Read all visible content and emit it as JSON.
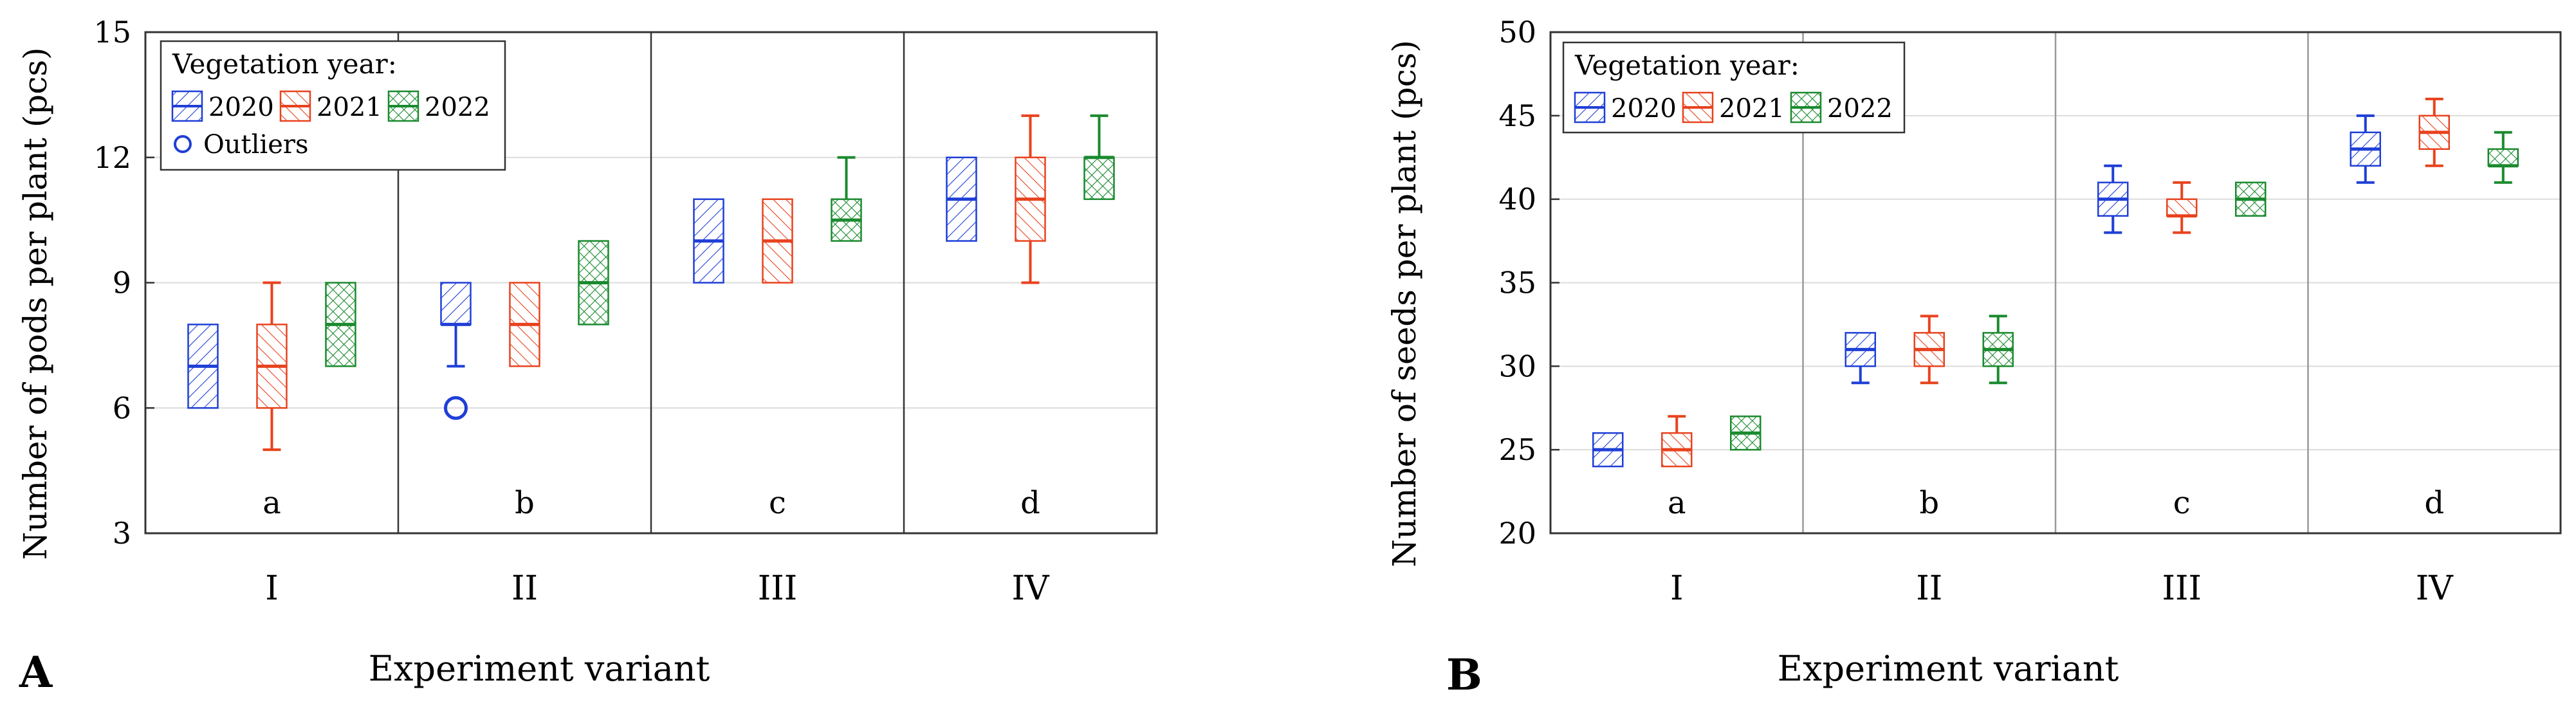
{
  "chart_data": [
    {
      "type": "box",
      "panel_label": "A",
      "xlabel": "Experiment variant",
      "ylabel": "Number of pods per plant (pcs)",
      "ylim": [
        3,
        15
      ],
      "yticks": [
        3,
        6,
        9,
        12,
        15
      ],
      "categories": [
        "I",
        "II",
        "III",
        "IV"
      ],
      "group_letters": [
        "a",
        "b",
        "c",
        "d"
      ],
      "legend": {
        "title": "Vegetation year:",
        "entries": [
          "2020",
          "2021",
          "2022"
        ],
        "outliers_label": "Outliers",
        "placement": "top-left"
      },
      "series": [
        {
          "name": "2020",
          "color": "#1f3fd6",
          "boxes": [
            {
              "min": 6,
              "q1": 6,
              "median": 7,
              "q3": 8,
              "max": 8
            },
            {
              "min": 7,
              "q1": 8,
              "median": 8,
              "q3": 9,
              "max": 9
            },
            {
              "min": 9,
              "q1": 9,
              "median": 10,
              "q3": 11,
              "max": 11
            },
            {
              "min": 10,
              "q1": 10,
              "median": 11,
              "q3": 12,
              "max": 12
            }
          ]
        },
        {
          "name": "2021",
          "color": "#e8421e",
          "boxes": [
            {
              "min": 5,
              "q1": 6,
              "median": 7,
              "q3": 8,
              "max": 9
            },
            {
              "min": 7,
              "q1": 7,
              "median": 8,
              "q3": 9,
              "max": 9
            },
            {
              "min": 9,
              "q1": 9,
              "median": 10,
              "q3": 11,
              "max": 11
            },
            {
              "min": 9,
              "q1": 10,
              "median": 11,
              "q3": 12,
              "max": 13
            }
          ]
        },
        {
          "name": "2022",
          "color": "#1a8a2e",
          "boxes": [
            {
              "min": 7,
              "q1": 7,
              "median": 8,
              "q3": 9,
              "max": 9
            },
            {
              "min": 8,
              "q1": 8,
              "median": 9,
              "q3": 10,
              "max": 10
            },
            {
              "min": 10,
              "q1": 10,
              "median": 10.5,
              "q3": 11,
              "max": 12
            },
            {
              "min": 11,
              "q1": 11,
              "median": 12,
              "q3": 12,
              "max": 13
            }
          ]
        }
      ],
      "outliers": [
        {
          "series": "2020",
          "category": "II",
          "value": 6
        }
      ]
    },
    {
      "type": "box",
      "panel_label": "B",
      "xlabel": "Experiment variant",
      "ylabel": "Number of seeds per plant (pcs)",
      "ylim": [
        20,
        50
      ],
      "yticks": [
        20,
        25,
        30,
        35,
        40,
        45,
        50
      ],
      "categories": [
        "I",
        "II",
        "III",
        "IV"
      ],
      "group_letters": [
        "a",
        "b",
        "c",
        "d"
      ],
      "legend": {
        "title": "Vegetation year:",
        "entries": [
          "2020",
          "2021",
          "2022"
        ],
        "placement": "top-left"
      },
      "series": [
        {
          "name": "2020",
          "color": "#1f3fd6",
          "boxes": [
            {
              "min": 24,
              "q1": 24,
              "median": 25,
              "q3": 26,
              "max": 26
            },
            {
              "min": 29,
              "q1": 30,
              "median": 31,
              "q3": 32,
              "max": 32
            },
            {
              "min": 38,
              "q1": 39,
              "median": 40,
              "q3": 41,
              "max": 42
            },
            {
              "min": 41,
              "q1": 42,
              "median": 43,
              "q3": 44,
              "max": 45
            }
          ]
        },
        {
          "name": "2021",
          "color": "#e8421e",
          "boxes": [
            {
              "min": 24,
              "q1": 24,
              "median": 25,
              "q3": 26,
              "max": 27
            },
            {
              "min": 29,
              "q1": 30,
              "median": 31,
              "q3": 32,
              "max": 33
            },
            {
              "min": 38,
              "q1": 39,
              "median": 39,
              "q3": 40,
              "max": 41
            },
            {
              "min": 42,
              "q1": 43,
              "median": 44,
              "q3": 45,
              "max": 46
            }
          ]
        },
        {
          "name": "2022",
          "color": "#1a8a2e",
          "boxes": [
            {
              "min": 25,
              "q1": 25,
              "median": 26,
              "q3": 27,
              "max": 27
            },
            {
              "min": 29,
              "q1": 30,
              "median": 31,
              "q3": 32,
              "max": 33
            },
            {
              "min": 39,
              "q1": 39,
              "median": 40,
              "q3": 41,
              "max": 41
            },
            {
              "min": 41,
              "q1": 42,
              "median": 42,
              "q3": 43,
              "max": 44
            }
          ]
        }
      ],
      "outliers": []
    }
  ]
}
